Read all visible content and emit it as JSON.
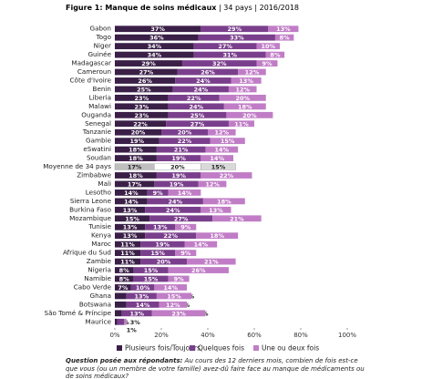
{
  "chart_data": {
    "type": "stacked-barh",
    "title": "Figure 1: Manque de soins médicaux",
    "subtitle": "| 34 pays | 2016/2018",
    "categories": [
      "Gabon",
      "Togo",
      "Niger",
      "Guinée",
      "Madagascar",
      "Cameroun",
      "Côte d'Ivoire",
      "Benin",
      "Liberia",
      "Malawi",
      "Ouganda",
      "Senegal",
      "Tanzanie",
      "Gambie",
      "eSwatini",
      "Soudan",
      "Moyenne de 34 pays",
      "Zimbabwe",
      "Mali",
      "Lesotho",
      "Sierra Leone",
      "Burkina Faso",
      "Mozambique",
      "Tunisie",
      "Kenya",
      "Maroc",
      "Afrique du Sud",
      "Zambie",
      "Nigeria",
      "Namibie",
      "Cabo Verde",
      "Ghana",
      "Botswana",
      "São Tomé & Príncipe",
      "Maurice"
    ],
    "series": [
      {
        "name": "Plusieurs fois/Toujours",
        "color": "#3a1f47",
        "values": [
          37,
          36,
          34,
          34,
          29,
          27,
          26,
          25,
          23,
          23,
          23,
          22,
          20,
          19,
          18,
          18,
          17,
          18,
          17,
          14,
          14,
          13,
          15,
          13,
          13,
          11,
          11,
          11,
          8,
          8,
          7,
          5,
          5,
          3,
          1
        ],
        "value_labels": [
          "37%",
          "36%",
          "34%",
          "34%",
          "29%",
          "27%",
          "26%",
          "25%",
          "23%",
          "23%",
          "23%",
          "22%",
          "20%",
          "19%",
          "18%",
          "18%",
          "17%",
          "18%",
          "17%",
          "14%",
          "14%",
          "13%",
          "15%",
          "13%",
          "13%",
          "11%",
          "11%",
          "11%",
          "8%",
          "8%",
          "7%",
          "5%",
          "5%",
          "3%",
          "1%"
        ]
      },
      {
        "name": "Quelques fois",
        "color": "#7a3f8c",
        "values": [
          29,
          33,
          27,
          31,
          32,
          26,
          24,
          24,
          22,
          24,
          25,
          27,
          20,
          22,
          21,
          19,
          20,
          19,
          19,
          9,
          24,
          24,
          27,
          13,
          22,
          19,
          15,
          20,
          15,
          15,
          10,
          13,
          14,
          13,
          3
        ],
        "value_labels": [
          "29%",
          "33%",
          "27%",
          "31%",
          "32%",
          "26%",
          "24%",
          "24%",
          "22%",
          "24%",
          "25%",
          "27%",
          "20%",
          "22%",
          "21%",
          "19%",
          "20%",
          "19%",
          "19%",
          "9%",
          "24%",
          "24%",
          "27%",
          "13%",
          "22%",
          "19%",
          "15%",
          "20%",
          "15%",
          "15%",
          "10%",
          "13%",
          "14%",
          "13%",
          "3%"
        ]
      },
      {
        "name": "Une ou deux fois",
        "color": "#c07dc6",
        "values": [
          13,
          8,
          10,
          8,
          9,
          12,
          13,
          12,
          20,
          18,
          20,
          11,
          12,
          15,
          14,
          14,
          15,
          22,
          12,
          14,
          18,
          13,
          21,
          9,
          18,
          14,
          9,
          21,
          26,
          9,
          14,
          15,
          12,
          23,
          1
        ],
        "value_labels": [
          "13%",
          "8%",
          "10%",
          "8%",
          "9%",
          "12%",
          "13%",
          "12%",
          "20%",
          "18%",
          "20%",
          "11%",
          "12%",
          "15%",
          "14%",
          "14%",
          "15%",
          "22%",
          "12%",
          "14%",
          "18%",
          "13%",
          "21%",
          "9%",
          "18%",
          "14%",
          "9%",
          "21%",
          "26%",
          "9%",
          "14%",
          "15%",
          "12%",
          "23%",
          "1%"
        ]
      }
    ],
    "highlight_category": "Moyenne de 34 pays",
    "highlight_colors": [
      "#bfbfbf",
      "#ffffff",
      "#d9d9d9"
    ],
    "xlim": [
      0,
      100
    ],
    "xticks": [
      {
        "value": 0,
        "label": "0%"
      },
      {
        "value": 20,
        "label": "20%"
      },
      {
        "value": 40,
        "label": "40%"
      },
      {
        "value": 60,
        "label": "60%"
      },
      {
        "value": 80,
        "label": "80%"
      },
      {
        "value": 100,
        "label": "100%"
      }
    ],
    "legend": "bottom",
    "note_label": "Question posée aux répondants:",
    "note": "Au cours des 12 derniers mois, combien de fois est-ce que vous (ou un membre de votre famille) avez-dû faire face au manque de médicaments ou de soins médicaux?"
  }
}
